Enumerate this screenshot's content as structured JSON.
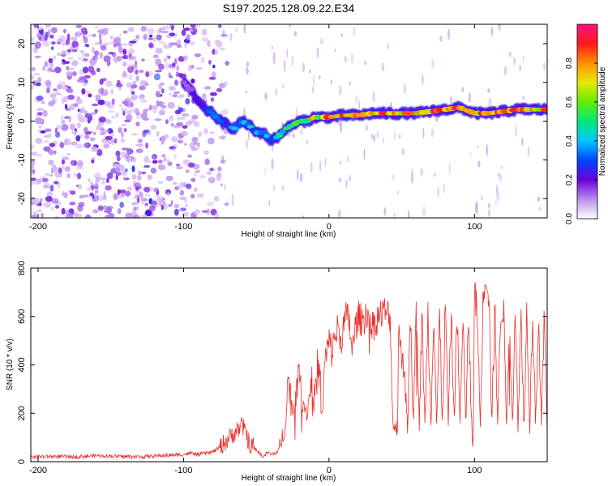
{
  "title": "S197.2025.128.09.22.E34",
  "colors": {
    "ridge_low": "#7b00e0",
    "ridge_mid": "#00d8c0",
    "ridge_high": "#ff2020",
    "snr_line": "#e8302c",
    "noise": "#8a2be2"
  },
  "chart_data": [
    {
      "type": "heatmap",
      "title": "S197.2025.128.09.22.E34",
      "xlabel": "Height of straight line (km)",
      "ylabel": "Frequency (Hz)",
      "xlim": [
        -205,
        150
      ],
      "ylim": [
        -25,
        25
      ],
      "xticks": [
        -200,
        -100,
        0,
        100
      ],
      "yticks": [
        -20,
        -10,
        0,
        10,
        20
      ],
      "colorbar": {
        "label": "Normalized spectral amplitude",
        "range": [
          0,
          1
        ],
        "ticks": [
          "0.0",
          "0.2",
          "0.4",
          "0.6",
          "0.8"
        ]
      },
      "ridge": {
        "x": [
          -100,
          -95,
          -90,
          -85,
          -80,
          -75,
          -70,
          -65,
          -60,
          -55,
          -50,
          -45,
          -40,
          -35,
          -30,
          -25,
          -20,
          -15,
          -10,
          -5,
          0,
          10,
          20,
          30,
          40,
          50,
          60,
          70,
          80,
          90,
          100,
          110,
          120,
          130,
          140,
          150
        ],
        "y": [
          10,
          8,
          5,
          3,
          2,
          0,
          -1,
          -2,
          0,
          -1,
          -3,
          -3,
          -5,
          -4,
          -2,
          -1,
          0,
          0,
          1,
          1,
          1,
          1.5,
          1.5,
          2,
          2,
          2,
          2,
          2.5,
          3,
          3.5,
          2,
          2,
          2.5,
          3,
          3,
          3
        ],
        "amplitude": [
          0.15,
          0.2,
          0.22,
          0.25,
          0.3,
          0.32,
          0.35,
          0.4,
          0.35,
          0.4,
          0.42,
          0.45,
          0.38,
          0.42,
          0.5,
          0.55,
          0.6,
          0.65,
          0.7,
          0.72,
          0.8,
          0.85,
          0.8,
          0.9,
          0.85,
          0.8,
          0.78,
          0.85,
          0.95,
          0.9,
          0.8,
          0.85,
          0.95,
          0.85,
          0.8,
          0.8
        ]
      }
    },
    {
      "type": "line",
      "xlabel": "Height of straight line (km)",
      "ylabel": "SNR (10 * v/v)",
      "xlim": [
        -205,
        150
      ],
      "ylim": [
        0,
        800
      ],
      "xticks": [
        -200,
        -100,
        0,
        100
      ],
      "yticks": [
        0,
        200,
        400,
        600,
        800
      ],
      "series": [
        {
          "x": [
            -205,
            -190,
            -175,
            -160,
            -145,
            -130,
            -115,
            -100,
            -95,
            -90,
            -85,
            -80,
            -75,
            -70,
            -65,
            -60,
            -57,
            -55,
            -52,
            -50,
            -47,
            -45,
            -42,
            -40,
            -35,
            -30,
            -28,
            -25,
            -22,
            -20,
            -18,
            -15,
            -12,
            -10,
            -8,
            -6,
            -5,
            -3,
            0,
            2,
            4,
            6,
            8,
            10,
            12,
            14,
            16,
            18,
            20,
            23,
            26,
            30,
            34,
            38,
            42,
            44,
            46,
            47,
            48,
            50,
            52,
            54,
            56,
            58,
            60,
            62,
            64,
            66,
            68,
            70,
            72,
            74,
            76,
            78,
            80,
            82,
            84,
            86,
            88,
            90,
            92,
            94,
            96,
            98,
            99,
            100,
            102,
            104,
            106,
            108,
            110,
            112,
            114,
            116,
            118,
            120,
            122,
            124,
            126,
            128,
            130,
            132,
            134,
            136,
            138,
            140,
            142,
            144,
            146,
            148,
            150
          ],
          "values": [
            20,
            22,
            20,
            25,
            22,
            20,
            25,
            30,
            35,
            30,
            35,
            40,
            60,
            90,
            120,
            150,
            120,
            80,
            60,
            50,
            30,
            20,
            40,
            30,
            40,
            150,
            350,
            200,
            300,
            400,
            250,
            200,
            350,
            250,
            400,
            350,
            150,
            400,
            500,
            450,
            520,
            550,
            500,
            560,
            600,
            580,
            450,
            550,
            600,
            580,
            620,
            560,
            600,
            620,
            600,
            150,
            140,
            140,
            600,
            400,
            380,
            150,
            600,
            160,
            640,
            150,
            600,
            140,
            620,
            150,
            640,
            150,
            600,
            160,
            660,
            150,
            620,
            160,
            640,
            150,
            620,
            140,
            600,
            160,
            30,
            720,
            600,
            140,
            700,
            780,
            680,
            150,
            640,
            150,
            620,
            640,
            150,
            620,
            160,
            600,
            150,
            630,
            140,
            640,
            150,
            620,
            160,
            600,
            150,
            600,
            160
          ]
        }
      ]
    }
  ]
}
